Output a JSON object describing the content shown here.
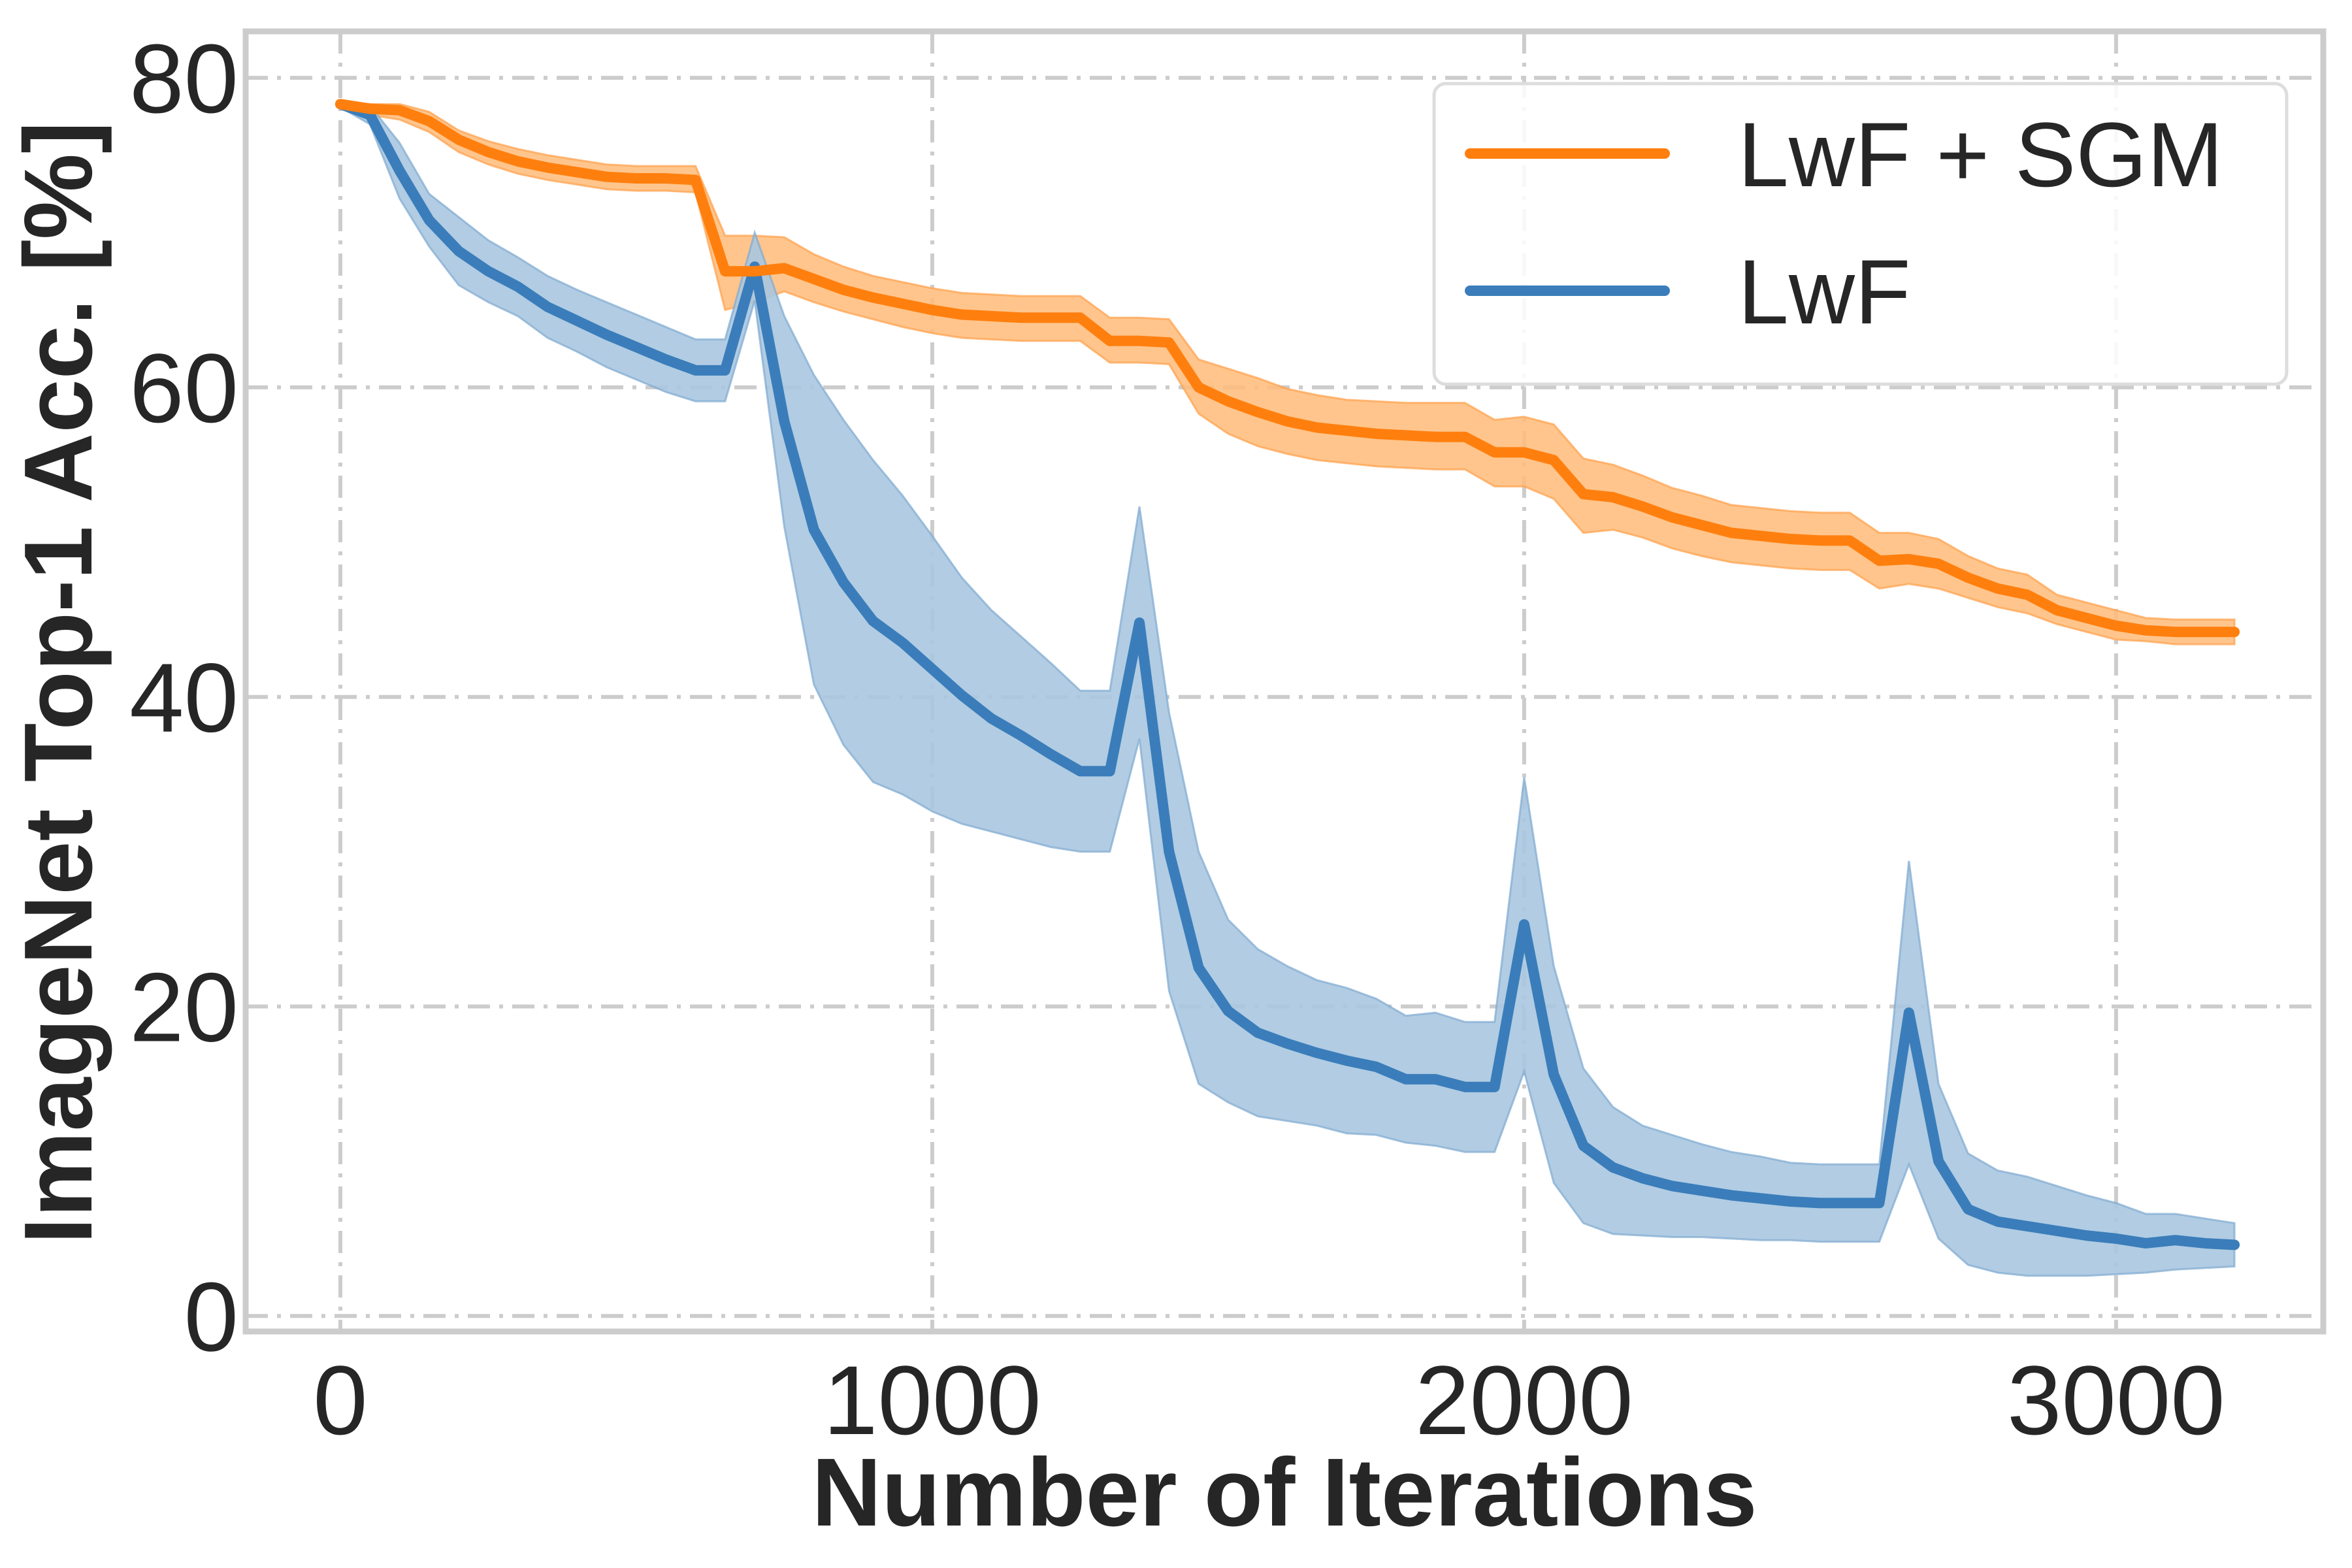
{
  "chart_data": {
    "type": "line",
    "title": "",
    "xlabel": "Number of Iterations",
    "ylabel": "ImageNet Top-1 Acc. [%]",
    "xlim": [
      -160,
      3350
    ],
    "ylim": [
      -1,
      83
    ],
    "xticks": [
      0,
      1000,
      2000,
      3000
    ],
    "xtick_labels": [
      "0",
      "1000",
      "2000",
      "3000"
    ],
    "yticks": [
      0,
      20,
      40,
      60,
      80
    ],
    "ytick_labels": [
      "0",
      "20",
      "40",
      "60",
      "80"
    ],
    "grid": true,
    "legend_position": "top-right",
    "series": [
      {
        "name": "LwF + SGM",
        "color": "#ff7f0e",
        "x": [
          0,
          50,
          100,
          150,
          200,
          250,
          300,
          350,
          400,
          450,
          500,
          550,
          600,
          650,
          700,
          750,
          800,
          850,
          900,
          950,
          1000,
          1050,
          1100,
          1150,
          1200,
          1250,
          1300,
          1350,
          1400,
          1450,
          1500,
          1550,
          1600,
          1650,
          1700,
          1750,
          1800,
          1850,
          1900,
          1950,
          2000,
          2050,
          2100,
          2150,
          2200,
          2250,
          2300,
          2350,
          2400,
          2450,
          2500,
          2550,
          2600,
          2650,
          2700,
          2750,
          2800,
          2850,
          2900,
          2950,
          3000,
          3050,
          3100,
          3150,
          3200
        ],
        "y": [
          78.3,
          78.0,
          77.9,
          77.2,
          76.0,
          75.2,
          74.6,
          74.2,
          73.9,
          73.6,
          73.5,
          73.5,
          73.4,
          67.5,
          67.5,
          67.7,
          67.0,
          66.3,
          65.8,
          65.4,
          65.0,
          64.7,
          64.6,
          64.5,
          64.5,
          64.5,
          63.0,
          63.0,
          62.9,
          60.0,
          59.1,
          58.4,
          57.8,
          57.4,
          57.2,
          57.0,
          56.9,
          56.8,
          56.8,
          55.8,
          55.8,
          55.3,
          53.1,
          52.9,
          52.3,
          51.6,
          51.1,
          50.6,
          50.4,
          50.2,
          50.1,
          50.1,
          48.8,
          48.9,
          48.6,
          47.7,
          47.0,
          46.6,
          45.6,
          45.1,
          44.6,
          44.3,
          44.2,
          44.2,
          44.2
        ],
        "y_lower": [
          78.1,
          77.6,
          77.3,
          76.5,
          75.2,
          74.4,
          73.8,
          73.4,
          73.1,
          72.8,
          72.7,
          72.7,
          72.6,
          65.0,
          65.5,
          66.2,
          65.5,
          64.9,
          64.4,
          63.9,
          63.5,
          63.2,
          63.1,
          63.0,
          63.0,
          63.0,
          61.6,
          61.6,
          61.5,
          58.3,
          57.0,
          56.2,
          55.7,
          55.3,
          55.1,
          54.9,
          54.8,
          54.7,
          54.7,
          53.6,
          53.6,
          52.8,
          50.6,
          50.8,
          50.3,
          49.6,
          49.1,
          48.7,
          48.5,
          48.3,
          48.2,
          48.2,
          47.0,
          47.3,
          47.0,
          46.4,
          45.8,
          45.4,
          44.7,
          44.2,
          43.7,
          43.6,
          43.4,
          43.4,
          43.4
        ],
        "y_upper": [
          78.5,
          78.3,
          78.3,
          77.8,
          76.6,
          75.9,
          75.4,
          75.0,
          74.7,
          74.4,
          74.3,
          74.3,
          74.3,
          69.8,
          69.8,
          69.7,
          68.6,
          67.8,
          67.2,
          66.8,
          66.4,
          66.1,
          66.0,
          65.9,
          65.9,
          65.9,
          64.5,
          64.5,
          64.4,
          61.8,
          61.2,
          60.6,
          59.9,
          59.5,
          59.2,
          59.1,
          59.0,
          59.0,
          59.0,
          57.9,
          58.1,
          57.6,
          55.4,
          55.0,
          54.3,
          53.5,
          53.0,
          52.4,
          52.2,
          52.0,
          51.9,
          51.9,
          50.6,
          50.6,
          50.2,
          49.1,
          48.3,
          47.9,
          46.6,
          46.1,
          45.6,
          45.1,
          45.0,
          45.0,
          45.0
        ]
      },
      {
        "name": "LwF",
        "color": "#3a7dba",
        "x": [
          0,
          50,
          100,
          150,
          200,
          250,
          300,
          350,
          400,
          450,
          500,
          550,
          600,
          650,
          700,
          750,
          800,
          850,
          900,
          950,
          1000,
          1050,
          1100,
          1150,
          1200,
          1250,
          1300,
          1350,
          1400,
          1450,
          1500,
          1550,
          1600,
          1650,
          1700,
          1750,
          1800,
          1850,
          1900,
          1950,
          2000,
          2050,
          2100,
          2150,
          2200,
          2250,
          2300,
          2350,
          2400,
          2450,
          2500,
          2550,
          2600,
          2650,
          2700,
          2750,
          2800,
          2850,
          2900,
          2950,
          3000,
          3050,
          3100,
          3150,
          3200
        ],
        "y": [
          78.3,
          77.6,
          74.0,
          70.8,
          68.8,
          67.5,
          66.5,
          65.2,
          64.3,
          63.4,
          62.6,
          61.8,
          61.1,
          61.1,
          67.8,
          57.8,
          50.8,
          47.4,
          44.9,
          43.5,
          41.8,
          40.1,
          38.6,
          37.5,
          36.3,
          35.2,
          35.2,
          44.8,
          30.0,
          22.5,
          19.7,
          18.3,
          17.6,
          17.0,
          16.5,
          16.1,
          15.3,
          15.3,
          14.8,
          14.8,
          25.3,
          15.6,
          11.0,
          9.6,
          8.9,
          8.4,
          8.1,
          7.8,
          7.6,
          7.4,
          7.3,
          7.3,
          7.3,
          19.6,
          10.0,
          6.9,
          6.1,
          5.8,
          5.5,
          5.2,
          5.0,
          4.7,
          4.9,
          4.7,
          4.6
        ],
        "y_lower": [
          78.1,
          77.0,
          72.2,
          69.1,
          66.6,
          65.5,
          64.6,
          63.2,
          62.3,
          61.3,
          60.5,
          59.7,
          59.1,
          59.1,
          65.6,
          51.0,
          40.8,
          36.9,
          34.5,
          33.7,
          32.6,
          31.8,
          31.3,
          30.8,
          30.3,
          30.0,
          30.0,
          37.3,
          21.0,
          15.0,
          13.8,
          12.9,
          12.6,
          12.3,
          11.8,
          11.7,
          11.2,
          11.0,
          10.6,
          10.6,
          15.8,
          8.6,
          6.0,
          5.3,
          5.2,
          5.1,
          5.1,
          5.0,
          4.9,
          4.9,
          4.8,
          4.8,
          4.8,
          9.8,
          5.0,
          3.3,
          2.8,
          2.6,
          2.6,
          2.6,
          2.7,
          2.8,
          3.0,
          3.1,
          3.2
        ],
        "y_upper": [
          78.5,
          78.2,
          75.8,
          72.5,
          71.0,
          69.5,
          68.4,
          67.2,
          66.3,
          65.5,
          64.7,
          63.9,
          63.1,
          63.1,
          70.0,
          64.6,
          60.8,
          57.9,
          55.3,
          53.0,
          50.4,
          47.7,
          45.6,
          43.9,
          42.2,
          40.4,
          40.4,
          52.3,
          39.0,
          30.0,
          25.6,
          23.7,
          22.6,
          21.7,
          21.2,
          20.5,
          19.4,
          19.6,
          19.0,
          19.0,
          34.8,
          22.6,
          16.0,
          13.5,
          12.3,
          11.7,
          11.1,
          10.6,
          10.3,
          9.9,
          9.8,
          9.8,
          9.8,
          29.4,
          15.0,
          10.5,
          9.4,
          9.0,
          8.4,
          7.8,
          7.3,
          6.6,
          6.6,
          6.3,
          6.0
        ]
      }
    ]
  }
}
